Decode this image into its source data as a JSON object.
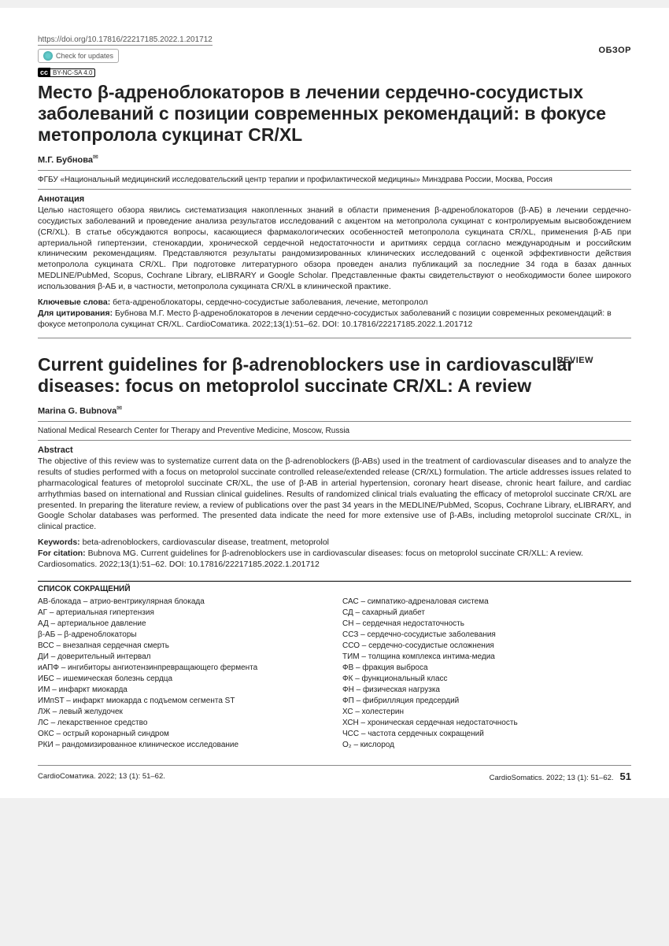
{
  "doi_url": "https://doi.org/10.17816/22217185.2022.1.201712",
  "check_updates": "Check for updates",
  "license": "BY-NC-SA 4.0",
  "type_ru": "ОБЗОР",
  "type_en": "REVIEW",
  "title_ru": "Место β-адреноблокаторов в лечении сердечно-сосудистых заболеваний с позиции современных рекомендаций: в фокусе метопролола сукцинат CR/XL",
  "author_ru": "М.Г. Бубнова",
  "affiliation_ru": "ФГБУ «Национальный медицинский исследовательский центр терапии и профилактической медицины» Минздрава России, Москва, Россия",
  "abstract_h_ru": "Аннотация",
  "abstract_ru": "Целью настоящего обзора явились систематизация накопленных знаний в области применения β-адреноблокаторов (β-АБ) в лечении сердечно-сосудистых заболеваний и проведение анализа результатов исследований с акцентом на метопролола сукцинат с контролируемым высвобождением (CR/XL). В статье обсуждаются вопросы, касающиеся фармакологических особенностей метопролола сукцината CR/XL, применения β-АБ при артериальной гипертензии, стенокардии, хронической сердечной недостаточности и аритмиях сердца согласно международным и российским клиническим рекомендациям. Представляются результаты рандомизированных клинических исследований с оценкой эффективности действия метопролола сукцината CR/XL. При подготовке литературного обзора проведен анализ публикаций за последние 34 года в базах данных MEDLINE/PubMed, Scopus, Cochrane Library, eLIBRARY и Google Scholar. Представленные факты свидетельствуют о необходимости более широкого использования β-АБ и, в частности, метопролола сукцината CR/XL в клинической практике.",
  "keywords_label_ru": "Ключевые слова:",
  "keywords_ru": "бета-адреноблокаторы, сердечно-сосудистые заболевания, лечение, метопролол",
  "citation_label_ru": "Для цитирования:",
  "citation_ru": "Бубнова М.Г. Место β-адреноблокаторов в лечении сердечно-сосудистых заболеваний с позиции современных рекомендаций: в фокусе метопролола сукцинат CR/XL. CardioСоматика. 2022;13(1):51–62. DOI: 10.17816/22217185.2022.1.201712",
  "title_en": "Current guidelines for β-adrenoblockers use in cardiovascular diseases: focus on metoprolol succinate CR/XL: A review",
  "author_en": "Marina G. Bubnova",
  "affiliation_en": "National Medical Research Center for Therapy and Preventive Medicine, Moscow, Russia",
  "abstract_h_en": "Abstract",
  "abstract_en": "The objective of this review was to systematize current data on the β-adrenoblockers (β-ABs) used in the treatment of cardiovascular diseases and to analyze the results of studies performed with a focus on metoprolol succinate controlled release/extended release (CR/XL) formulation. The article addresses issues related to pharmacological features of metoprolol succinate CR/XL, the use of β-AB in arterial hypertension, coronary heart disease, chronic heart failure, and cardiac arrhythmias based on international and Russian clinical guidelines. Results of randomized clinical trials evaluating the efficacy of metoprolol succinate CR/XL are presented. In preparing the literature review, a review of publications over the past 34 years in the MEDLINE/PubMed, Scopus, Cochrane Library, eLIBRARY, and Google Scholar databases was performed. The presented data indicate the need for more extensive use of β-ABs, including metoprolol succinate CR/XL, in clinical practice.",
  "keywords_label_en": "Keywords:",
  "keywords_en": "beta-adrenoblockers, cardiovascular disease, treatment, metoprolol",
  "citation_label_en": "For citation:",
  "citation_en": "Bubnova MG. Current guidelines for β-adrenoblockers use in cardiovascular diseases: focus on metoprolol succinate CR/XLL: A review. Cardiosomatics. 2022;13(1):51–62. DOI: 10.17816/22217185.2022.1.201712",
  "abbrev_title": "СПИСОК СОКРАЩЕНИЙ",
  "abbrev_left": [
    "АВ-блокада – атрио-вентрикулярная блокада",
    "АГ – артериальная гипертензия",
    "АД – артериальное давление",
    "β-АБ – β-адреноблокаторы",
    "ВСС – внезапная сердечная смерть",
    "ДИ – доверительный интервал",
    "иАПФ – ингибиторы ангиотензинпревращающего фермента",
    "ИБС – ишемическая болезнь сердца",
    "ИМ – инфаркт миокарда",
    "ИМпST – инфаркт миокарда с подъемом сегмента ST",
    "ЛЖ – левый желудочек",
    "ЛС – лекарственное средство",
    "ОКС – острый коронарный синдром",
    "РКИ – рандомизированное клиническое исследование"
  ],
  "abbrev_right": [
    "САС – симпатико-адреналовая система",
    "СД – сахарный диабет",
    "СН – сердечная недостаточность",
    "ССЗ – сердечно-сосудистые заболевания",
    "ССО – сердечно-сосудистые осложнения",
    "ТИМ – толщина комплекса интима-медиа",
    "ФВ – фракция выброса",
    "ФК – функциональный класс",
    "ФН – физическая нагрузка",
    "ФП – фибрилляция предсердий",
    "ХС – холестерин",
    "ХСН – хроническая сердечная недостаточность",
    "ЧСС – частота сердечных сокращений",
    "O₂ – кислород"
  ],
  "footer_left": "CardioСоматика. 2022; 13 (1): 51–62.",
  "footer_right": "CardioSomatics. 2022; 13 (1): 51–62.",
  "page_num": "51"
}
